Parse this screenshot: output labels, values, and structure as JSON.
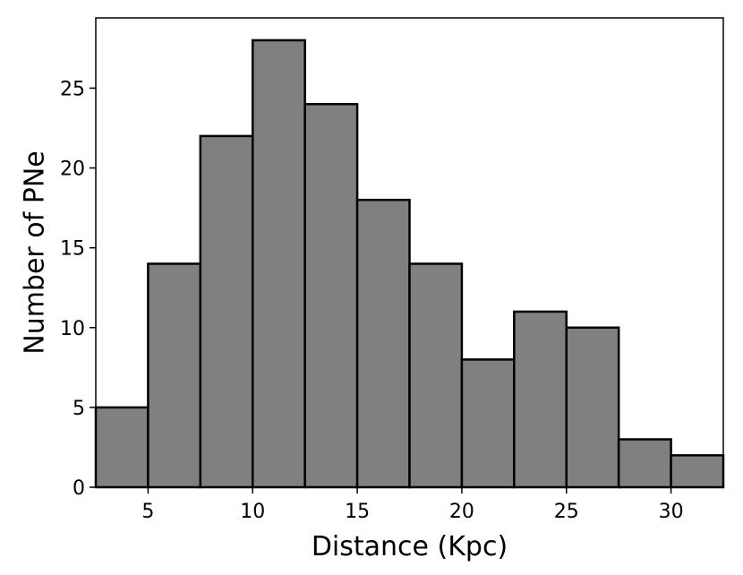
{
  "chart_data": {
    "type": "bar",
    "title": "",
    "xlabel": "Distance (Kpc)",
    "ylabel": "Number of PNe",
    "bin_edges": [
      2.5,
      5,
      7.5,
      10,
      12.5,
      15,
      17.5,
      20,
      22.5,
      25,
      27.5,
      30,
      32.5
    ],
    "values": [
      5,
      14,
      22,
      28,
      24,
      18,
      14,
      8,
      11,
      10,
      3,
      2
    ],
    "xlim": [
      2.5,
      32.5
    ],
    "ylim": [
      0,
      29.4
    ],
    "xticks": [
      5,
      10,
      15,
      20,
      25,
      30
    ],
    "yticks": [
      0,
      5,
      10,
      15,
      20,
      25
    ],
    "grid": false,
    "bar_color": "#808080",
    "edge_color": "#000000"
  }
}
